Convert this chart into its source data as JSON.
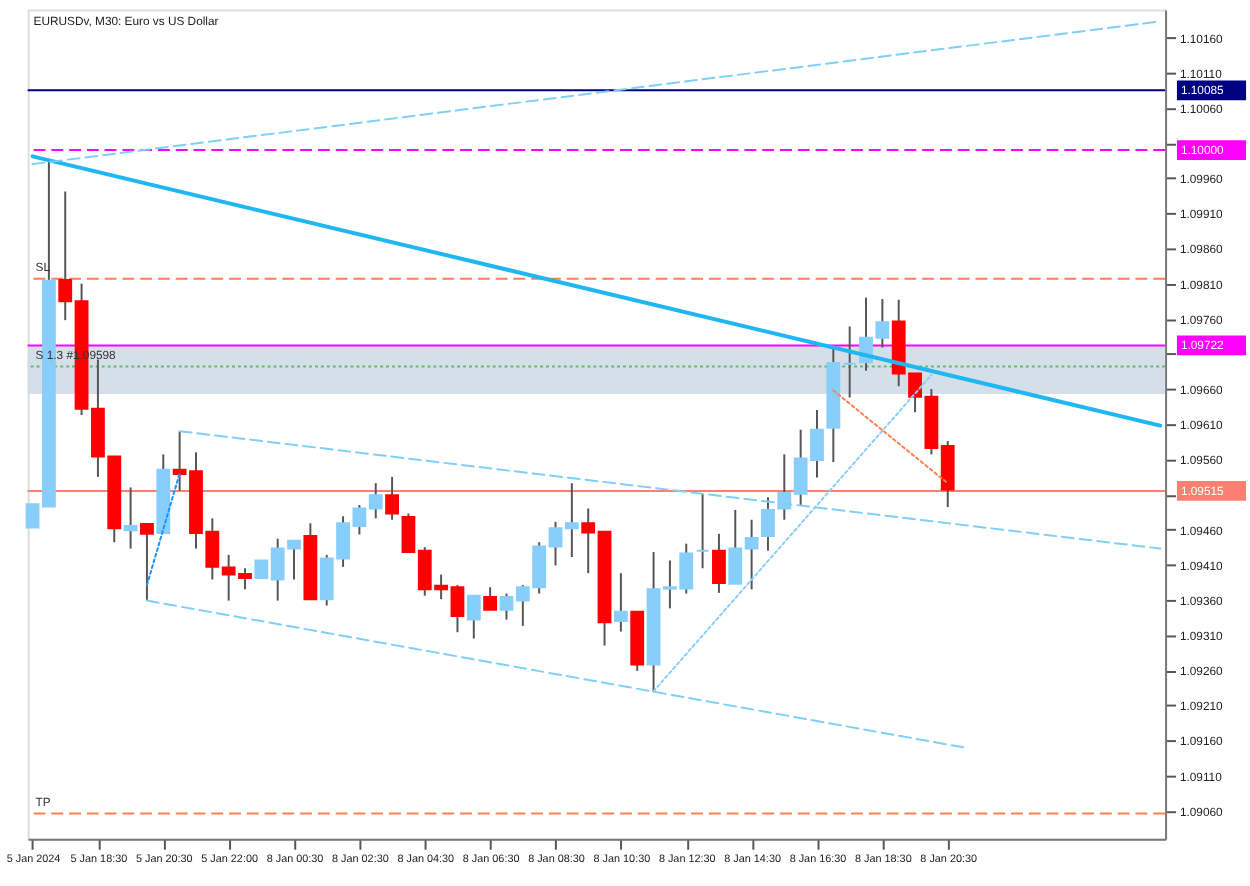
{
  "chart_data": {
    "type": "candlestick",
    "title": "EURUSDv, M30:  Euro vs US Dollar",
    "categories": [
      "5 Jan 2024",
      null,
      null,
      null,
      "5 Jan 18:30",
      null,
      null,
      null,
      "5 Jan 20:30",
      null,
      null,
      null,
      "5 Jan 22:00",
      null,
      null,
      null,
      "8 Jan 00:30",
      null,
      null,
      null,
      "8 Jan 02:30",
      null,
      null,
      null,
      "8 Jan 04:30",
      null,
      null,
      null,
      "8 Jan 06:30",
      null,
      null,
      null,
      "8 Jan 08:30",
      null,
      null,
      null,
      "8 Jan 10:30",
      null,
      null,
      null,
      "8 Jan 12:30",
      null,
      null,
      null,
      "8 Jan 14:30",
      null,
      null,
      null,
      "8 Jan 16:30",
      null,
      null,
      null,
      "8 Jan 18:30",
      null,
      null,
      null,
      "8 Jan 20:30",
      null,
      null,
      null,
      null,
      null,
      null,
      null,
      null,
      null,
      null,
      null,
      null,
      null
    ],
    "ohlc": [
      [
        1.09463,
        1.09496,
        1.09463,
        1.09496
      ],
      [
        1.09493,
        1.09984,
        1.09493,
        1.09814
      ],
      [
        1.09815,
        1.09941,
        1.09758,
        1.09785
      ],
      [
        1.09785,
        1.0981,
        1.09623,
        1.09632
      ],
      [
        1.09632,
        1.09702,
        1.09535,
        1.09564
      ],
      [
        1.09564,
        1.09564,
        1.09442,
        1.09462
      ],
      [
        1.09459,
        1.0952,
        1.09433,
        1.09465
      ],
      [
        1.09468,
        1.09468,
        1.09359,
        1.09454
      ],
      [
        1.09455,
        1.09567,
        1.09455,
        1.09545
      ],
      [
        1.09545,
        1.096,
        1.09515,
        1.09539
      ],
      [
        1.09543,
        1.0957,
        1.09433,
        1.09455
      ],
      [
        1.09457,
        1.09476,
        1.09389,
        1.09407
      ],
      [
        1.09406,
        1.09424,
        1.09359,
        1.09396
      ],
      [
        1.09397,
        1.09405,
        1.09375,
        1.09391
      ],
      [
        1.09391,
        1.09416,
        1.09391,
        1.09416
      ],
      [
        1.09389,
        1.09447,
        1.09359,
        1.09433
      ],
      [
        1.09433,
        1.09444,
        1.09389,
        1.09444
      ],
      [
        1.09451,
        1.09469,
        1.09361,
        1.09361
      ],
      [
        1.09361,
        1.09424,
        1.09352,
        1.09419
      ],
      [
        1.09419,
        1.09479,
        1.09407,
        1.09469
      ],
      [
        1.09465,
        1.09495,
        1.09453,
        1.0949
      ],
      [
        1.0949,
        1.09526,
        1.09476,
        1.09509
      ],
      [
        1.09509,
        1.09535,
        1.09474,
        1.09483
      ],
      [
        1.09478,
        1.09483,
        1.09428,
        1.09428
      ],
      [
        1.0943,
        1.09435,
        1.09366,
        1.09375
      ],
      [
        1.0938,
        1.09396,
        1.09361,
        1.09375
      ],
      [
        1.09378,
        1.09381,
        1.09314,
        1.09337
      ],
      [
        1.09332,
        1.09366,
        1.09305,
        1.09366
      ],
      [
        1.09364,
        1.09378,
        1.09346,
        1.09346
      ],
      [
        1.09346,
        1.09369,
        1.09332,
        1.09364
      ],
      [
        1.09359,
        1.09381,
        1.09323,
        1.09378
      ],
      [
        1.09378,
        1.09442,
        1.09369,
        1.09436
      ],
      [
        1.09436,
        1.09471,
        1.09409,
        1.09462
      ],
      [
        1.09462,
        1.09526,
        1.09421,
        1.09469
      ],
      [
        1.09469,
        1.0949,
        1.09398,
        1.09456
      ],
      [
        1.09457,
        1.09457,
        1.09295,
        1.09328
      ],
      [
        1.0933,
        1.09398,
        1.09315,
        1.09343
      ],
      [
        1.09343,
        1.09343,
        1.09259,
        1.09268
      ],
      [
        1.09268,
        1.09428,
        1.09229,
        1.09375
      ],
      [
        1.09376,
        1.09416,
        1.09348,
        1.09378
      ],
      [
        1.09376,
        1.0944,
        1.09369,
        1.09426
      ],
      [
        1.0943,
        1.09511,
        1.09405,
        1.0943
      ],
      [
        1.0943,
        1.09454,
        1.0937,
        1.09384
      ],
      [
        1.09383,
        1.09488,
        1.09383,
        1.09433
      ],
      [
        1.09433,
        1.09474,
        1.09375,
        1.09448
      ],
      [
        1.09451,
        1.09506,
        1.0943,
        1.09488
      ],
      [
        1.0949,
        1.09567,
        1.09474,
        1.09512
      ],
      [
        1.09511,
        1.09602,
        1.09495,
        1.09561
      ],
      [
        1.09559,
        1.0963,
        1.09534,
        1.09602
      ],
      [
        1.09605,
        1.09717,
        1.09556,
        1.09697
      ],
      [
        1.09696,
        1.09749,
        1.09648,
        1.09696
      ],
      [
        1.09698,
        1.0979,
        1.09686,
        1.09733
      ],
      [
        1.09733,
        1.09788,
        1.09719,
        1.09755
      ],
      [
        1.09756,
        1.09787,
        1.09664,
        1.09682
      ],
      [
        1.09682,
        1.09682,
        1.09627,
        1.09649
      ],
      [
        1.09649,
        1.0966,
        1.09567,
        1.09576
      ],
      [
        1.09579,
        1.09586,
        1.09492,
        1.09517
      ],
      null,
      null,
      null,
      null,
      null,
      null,
      null,
      null,
      null,
      null,
      null,
      null,
      null
    ],
    "colors": [
      "#87cefa",
      "#87cefa",
      "#ff0000",
      "#ff0000",
      "#ff0000",
      "#ff0000",
      "#87cefa",
      "#ff0000",
      "#87cefa",
      "#ff0000",
      "#ff0000",
      "#ff0000",
      "#ff0000",
      "#ff0000",
      "#87cefa",
      "#87cefa",
      "#87cefa",
      "#ff0000",
      "#87cefa",
      "#87cefa",
      "#87cefa",
      "#87cefa",
      "#ff0000",
      "#ff0000",
      "#ff0000",
      "#ff0000",
      "#ff0000",
      "#87cefa",
      "#ff0000",
      "#87cefa",
      "#87cefa",
      "#87cefa",
      "#87cefa",
      "#87cefa",
      "#ff0000",
      "#ff0000",
      "#87cefa",
      "#ff0000",
      "#87cefa",
      "#87cefa",
      "#87cefa",
      "#87cefa",
      "#ff0000",
      "#87cefa",
      "#87cefa",
      "#87cefa",
      "#87cefa",
      "#87cefa",
      "#87cefa",
      "#87cefa",
      "#87cefa",
      "#87cefa",
      "#87cefa",
      "#ff0000",
      "#ff0000",
      "#ff0000",
      "#ff0000",
      null,
      null,
      null,
      null,
      null,
      null,
      null,
      null,
      null,
      null,
      null,
      null,
      null
    ],
    "series": [
      {
        "type": "line",
        "color": "#1fb6f2",
        "line_style": "solid",
        "values": [
          1.09991,
          null,
          null,
          null,
          null,
          null,
          null,
          null,
          null,
          null,
          null,
          null,
          null,
          null,
          null,
          null,
          null,
          null,
          null,
          null,
          null,
          null,
          null,
          null,
          null,
          null,
          null,
          null,
          null,
          null,
          null,
          null,
          null,
          null,
          null,
          null,
          null,
          null,
          null,
          null,
          null,
          null,
          null,
          null,
          null,
          null,
          null,
          null,
          null,
          null,
          null,
          null,
          null,
          null,
          null,
          null,
          null,
          null,
          null,
          null,
          null,
          null,
          null,
          null,
          null,
          null,
          null,
          null,
          null,
          1.09608
        ]
      },
      {
        "type": "line",
        "color": "#7fd0f5",
        "line_style": "dashed",
        "values": [
          1.0998,
          null,
          null,
          null,
          null,
          null,
          null,
          null,
          null,
          null,
          null,
          null,
          null,
          null,
          null,
          null,
          null,
          null,
          null,
          null,
          null,
          null,
          null,
          null,
          null,
          null,
          null,
          null,
          null,
          null,
          null,
          null,
          null,
          null,
          null,
          null,
          null,
          null,
          null,
          null,
          null,
          null,
          null,
          null,
          null,
          null,
          null,
          null,
          null,
          null,
          null,
          null,
          null,
          null,
          null,
          null,
          null,
          null,
          null,
          null,
          null,
          null,
          null,
          null,
          null,
          null,
          null,
          null,
          null,
          1.10183
        ]
      },
      {
        "type": "line",
        "color": "#7fd0f5",
        "line_style": "dashed",
        "values": [
          null,
          null,
          null,
          null,
          null,
          null,
          null,
          null,
          null,
          1.096,
          null,
          null,
          null,
          null,
          null,
          null,
          null,
          null,
          null,
          null,
          null,
          null,
          null,
          null,
          null,
          null,
          null,
          null,
          null,
          null,
          null,
          null,
          null,
          null,
          null,
          null,
          null,
          null,
          null,
          null,
          null,
          null,
          null,
          null,
          null,
          null,
          null,
          null,
          null,
          null,
          null,
          null,
          null,
          null,
          null,
          null,
          null,
          null,
          null,
          null,
          null,
          null,
          null,
          null,
          null,
          null,
          null,
          null,
          null,
          1.09433
        ]
      },
      {
        "type": "line",
        "color": "#7fd0f5",
        "line_style": "dashed",
        "values": [
          null,
          null,
          null,
          null,
          null,
          null,
          null,
          1.09359,
          null,
          null,
          null,
          null,
          null,
          null,
          null,
          null,
          null,
          null,
          null,
          null,
          null,
          null,
          null,
          null,
          null,
          null,
          null,
          null,
          null,
          null,
          null,
          null,
          null,
          null,
          null,
          null,
          null,
          null,
          null,
          null,
          null,
          null,
          null,
          null,
          null,
          null,
          null,
          null,
          null,
          null,
          null,
          null,
          null,
          null,
          null,
          null,
          null,
          1.0915,
          null,
          null,
          null,
          null,
          null,
          null,
          null,
          null,
          null,
          null,
          null,
          null
        ]
      },
      {
        "type": "line",
        "color": "#1e90ff",
        "line_style": "dotted",
        "values": [
          null,
          null,
          null,
          null,
          null,
          null,
          null,
          1.09381,
          null,
          1.0954,
          null,
          null,
          null,
          null,
          null,
          null,
          null,
          null,
          null,
          null,
          null,
          null,
          null,
          null,
          null,
          null,
          null,
          null,
          null,
          null,
          null,
          null,
          null,
          null,
          null,
          null,
          null,
          null,
          null,
          null,
          null,
          null,
          null,
          null,
          null,
          null,
          null,
          null,
          null,
          null,
          null,
          null,
          null,
          null,
          null,
          null,
          null,
          null,
          null,
          null,
          null,
          null,
          null,
          null,
          null,
          null,
          null,
          null,
          null,
          null
        ]
      },
      {
        "type": "line",
        "color": "#87cefa",
        "line_style": "dotted",
        "values": [
          null,
          null,
          null,
          null,
          null,
          null,
          null,
          null,
          null,
          null,
          null,
          null,
          null,
          null,
          null,
          null,
          null,
          null,
          null,
          null,
          null,
          null,
          null,
          null,
          null,
          null,
          null,
          null,
          null,
          null,
          null,
          null,
          null,
          null,
          null,
          null,
          null,
          null,
          1.0923,
          null,
          null,
          null,
          null,
          null,
          null,
          null,
          null,
          null,
          null,
          null,
          null,
          null,
          null,
          null,
          null,
          1.0968,
          null,
          null,
          null,
          null,
          null,
          null,
          null,
          null,
          null,
          null,
          null,
          null,
          null,
          null
        ]
      },
      {
        "type": "line",
        "color": "#ff7f50",
        "line_style": "dotted",
        "values": [
          null,
          null,
          null,
          null,
          null,
          null,
          null,
          null,
          null,
          null,
          null,
          null,
          null,
          null,
          null,
          null,
          null,
          null,
          null,
          null,
          null,
          null,
          null,
          null,
          null,
          null,
          null,
          null,
          null,
          null,
          null,
          null,
          null,
          null,
          null,
          null,
          null,
          null,
          null,
          null,
          null,
          null,
          null,
          null,
          null,
          null,
          null,
          null,
          null,
          1.09658,
          null,
          null,
          null,
          null,
          null,
          null,
          1.09526,
          null,
          null,
          null,
          null,
          null,
          null,
          null,
          null,
          null,
          null,
          null,
          null,
          null
        ]
      }
    ],
    "ref_lines": [
      {
        "axis": "y",
        "value": 1.10085,
        "label": "1.10085",
        "color": "#000080",
        "line_style": "solid"
      },
      {
        "axis": "y",
        "value": 1.1,
        "label": "1.10000",
        "color": "#ff00ff",
        "line_style": "dashed"
      },
      {
        "axis": "y",
        "value": 1.09817,
        "color": "#ff7f50",
        "line_style": "dashed"
      },
      {
        "axis": "y",
        "value": 1.09722,
        "label": "1.09722",
        "color": "#ff00ff",
        "line_style": "solid"
      },
      {
        "axis": "y",
        "value": 1.09692,
        "color": "#66bb66",
        "line_style": "dotted"
      },
      {
        "axis": "y",
        "value": 1.09515,
        "label": "1.09515",
        "color": "#fa8072",
        "line_style": "solid"
      },
      {
        "axis": "y",
        "value": 1.09056,
        "color": "#ff7f50",
        "line_style": "dashed"
      }
    ],
    "bands": [
      {
        "axis": "y",
        "from": 1.09653,
        "to": 1.09722,
        "color": "#d0dce8"
      }
    ],
    "annotations": [
      {
        "text": "SL",
        "y": 1.09817
      },
      {
        "text": "S 1.3 #1.09598",
        "y": 1.09692
      },
      {
        "text": "TP",
        "y": 1.09056
      }
    ],
    "ylim": [
      1.0902,
      1.102
    ],
    "yticks": [
      {
        "value": 1.1016,
        "label": "1.10160"
      },
      {
        "value": 1.1011,
        "label": "1.10110"
      },
      {
        "value": 1.1006,
        "label": "1.10060"
      },
      {
        "value": 1.1001,
        "label": null
      },
      {
        "value": 1.0996,
        "label": "1.09960"
      },
      {
        "value": 1.0991,
        "label": "1.09910"
      },
      {
        "value": 1.0986,
        "label": "1.09860"
      },
      {
        "value": 1.0981,
        "label": "1.09810"
      },
      {
        "value": 1.0976,
        "label": "1.09760"
      },
      {
        "value": 1.0971,
        "label": null
      },
      {
        "value": 1.0966,
        "label": "1.09660"
      },
      {
        "value": 1.0961,
        "label": "1.09610"
      },
      {
        "value": 1.0956,
        "label": "1.09560"
      },
      {
        "value": 1.0951,
        "label": null
      },
      {
        "value": 1.0946,
        "label": "1.09460"
      },
      {
        "value": 1.0941,
        "label": "1.09410"
      },
      {
        "value": 1.0936,
        "label": "1.09360"
      },
      {
        "value": 1.0931,
        "label": "1.09310"
      },
      {
        "value": 1.0926,
        "label": "1.09260"
      },
      {
        "value": 1.0921,
        "label": "1.09210"
      },
      {
        "value": 1.0916,
        "label": "1.09160"
      },
      {
        "value": 1.0911,
        "label": "1.09110"
      },
      {
        "value": 1.0906,
        "label": "1.09060"
      }
    ],
    "grid": false
  }
}
